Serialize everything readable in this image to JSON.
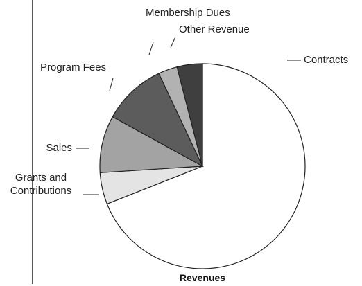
{
  "chart_data": {
    "type": "pie",
    "title": "Revenues",
    "categories": [
      "Contracts",
      "Grants and Contributions",
      "Sales",
      "Program Fees",
      "Membership Dues",
      "Other Revenue"
    ],
    "values": [
      69,
      5,
      9,
      10,
      3,
      4
    ],
    "colors": [
      "#ffffff",
      "#e4e4e4",
      "#a3a3a3",
      "#5c5c5c",
      "#b2b2b2",
      "#3f3f3f"
    ]
  }
}
